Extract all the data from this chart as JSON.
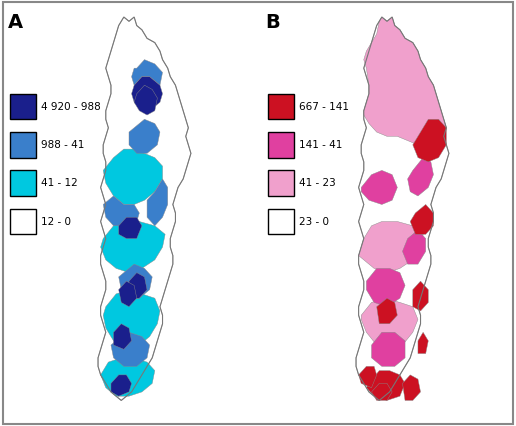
{
  "figure_width": 5.16,
  "figure_height": 4.26,
  "dpi": 100,
  "background_color": "#ffffff",
  "panel_A_label": "A",
  "panel_B_label": "B",
  "legend_A": {
    "entries": [
      {
        "label": "4 920 - 988",
        "color": "#1a1f8c"
      },
      {
        "label": "988 - 41",
        "color": "#3a7fcb"
      },
      {
        "label": "41 - 12",
        "color": "#00c8e0"
      },
      {
        "label": "12 - 0",
        "color": "#ffffff"
      }
    ]
  },
  "legend_B": {
    "entries": [
      {
        "label": "667 - 141",
        "color": "#cc1122"
      },
      {
        "label": "141 - 41",
        "color": "#e040a0"
      },
      {
        "label": "41 - 23",
        "color": "#f0a0cc"
      },
      {
        "label": "23 - 0",
        "color": "#ffffff"
      }
    ]
  },
  "label_fontsize": 14,
  "legend_fontsize": 7.5,
  "outer_border_color": "#888888"
}
